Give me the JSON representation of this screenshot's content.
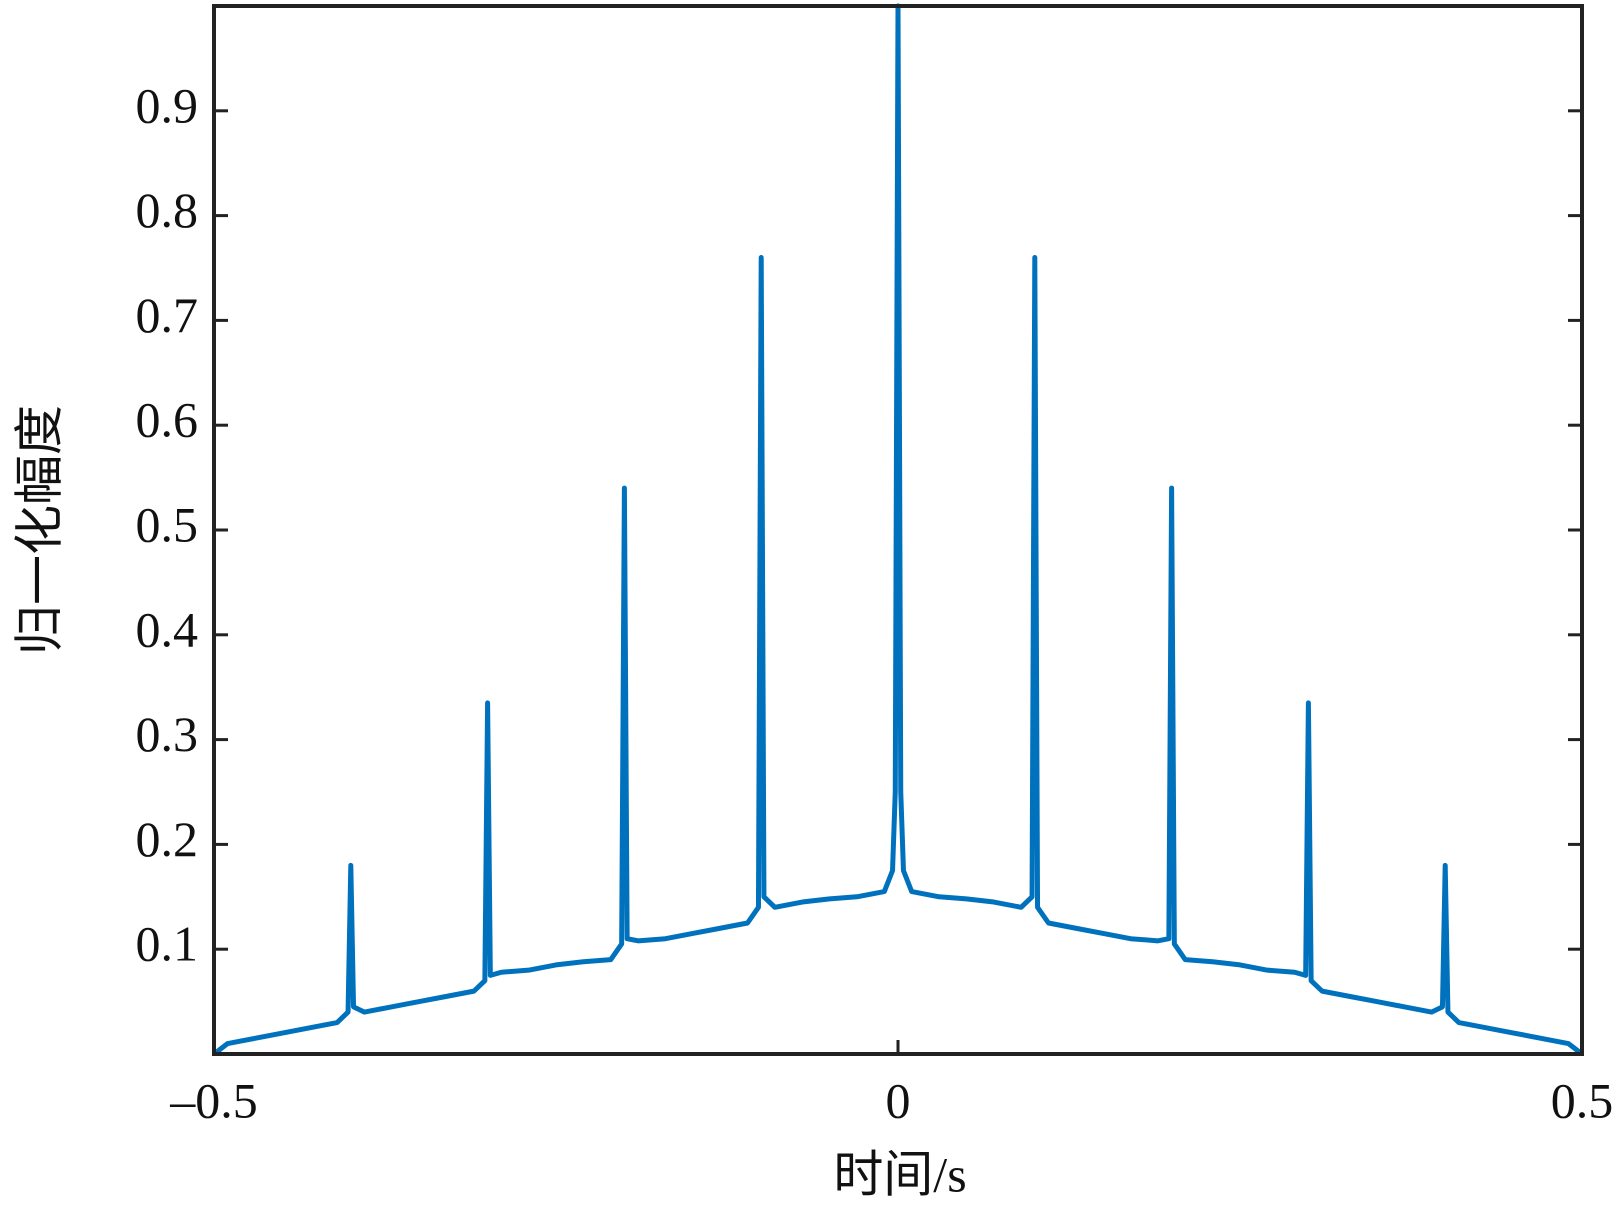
{
  "chart_data": {
    "type": "line",
    "xlabel": "时间/s",
    "ylabel": "归一化幅度",
    "x": [
      -0.5,
      -0.49,
      -0.47,
      -0.45,
      -0.43,
      -0.41,
      -0.402,
      -0.4,
      -0.398,
      -0.39,
      -0.37,
      -0.35,
      -0.33,
      -0.31,
      -0.302,
      -0.3,
      -0.298,
      -0.29,
      -0.27,
      -0.25,
      -0.23,
      -0.21,
      -0.202,
      -0.2,
      -0.198,
      -0.19,
      -0.17,
      -0.15,
      -0.13,
      -0.11,
      -0.102,
      -0.1,
      -0.098,
      -0.09,
      -0.07,
      -0.05,
      -0.03,
      -0.01,
      -0.004,
      -0.002,
      0,
      0.002,
      0.004,
      0.01,
      0.03,
      0.05,
      0.07,
      0.09,
      0.098,
      0.1,
      0.102,
      0.11,
      0.13,
      0.15,
      0.17,
      0.19,
      0.198,
      0.2,
      0.202,
      0.21,
      0.23,
      0.25,
      0.27,
      0.29,
      0.298,
      0.3,
      0.302,
      0.31,
      0.33,
      0.35,
      0.37,
      0.39,
      0.398,
      0.4,
      0.402,
      0.41,
      0.43,
      0.45,
      0.47,
      0.49,
      0.5
    ],
    "values": [
      0,
      0.01,
      0.015,
      0.02,
      0.025,
      0.03,
      0.04,
      0.18,
      0.045,
      0.04,
      0.045,
      0.05,
      0.055,
      0.06,
      0.07,
      0.335,
      0.075,
      0.078,
      0.08,
      0.085,
      0.088,
      0.09,
      0.105,
      0.54,
      0.11,
      0.108,
      0.11,
      0.115,
      0.12,
      0.125,
      0.14,
      0.76,
      0.15,
      0.14,
      0.145,
      0.148,
      0.15,
      0.155,
      0.175,
      0.25,
      1,
      0.25,
      0.175,
      0.155,
      0.15,
      0.148,
      0.145,
      0.14,
      0.15,
      0.76,
      0.14,
      0.125,
      0.12,
      0.115,
      0.11,
      0.108,
      0.11,
      0.54,
      0.105,
      0.09,
      0.088,
      0.085,
      0.08,
      0.078,
      0.075,
      0.335,
      0.07,
      0.06,
      0.055,
      0.05,
      0.045,
      0.04,
      0.045,
      0.18,
      0.04,
      0.03,
      0.025,
      0.02,
      0.015,
      0.01,
      0
    ],
    "color": "#0072bd",
    "xlim": [
      -0.5,
      0.5
    ],
    "xticks": [
      {
        "value": -0.5,
        "label": "–0.5"
      },
      0,
      0.5
    ],
    "ylim": [
      0,
      1
    ],
    "yticks": [
      0.1,
      0.2,
      0.3,
      0.4,
      0.5,
      0.6,
      0.7,
      0.8,
      0.9
    ]
  }
}
